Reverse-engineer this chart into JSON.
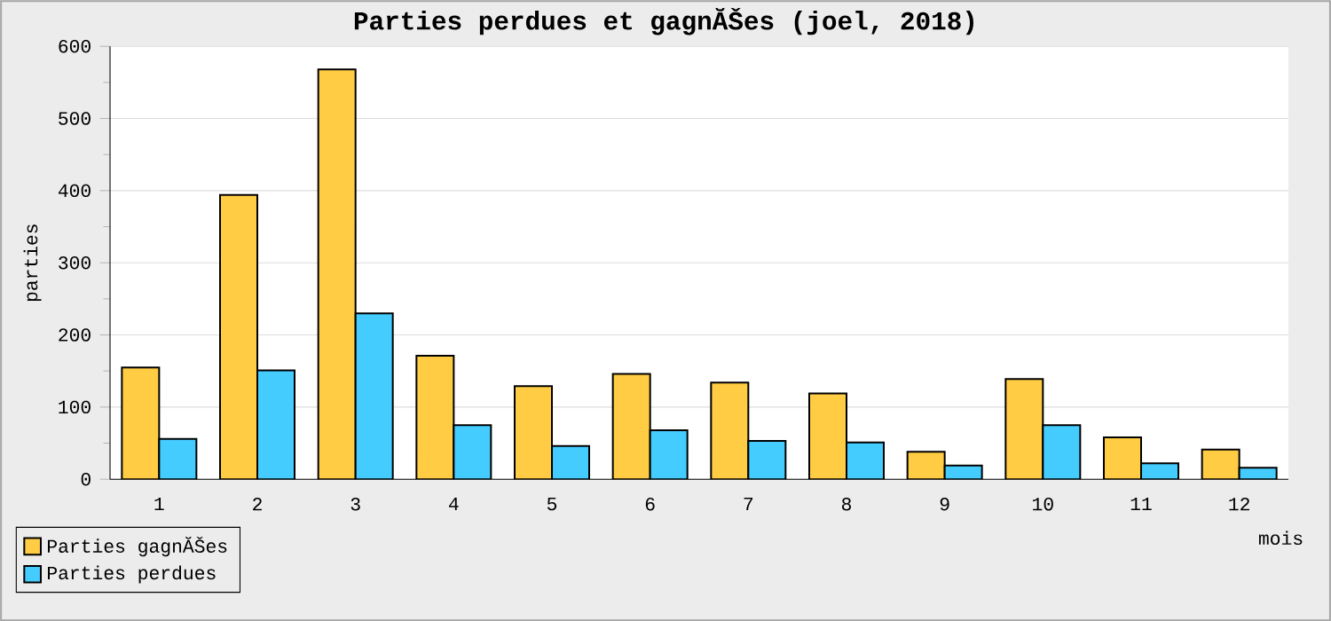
{
  "chart_data": {
    "type": "bar",
    "title": "Parties perdues et gagnĂŠes (joel, 2018)",
    "xlabel": "mois",
    "ylabel": "parties",
    "categories": [
      "1",
      "2",
      "3",
      "4",
      "5",
      "6",
      "7",
      "8",
      "9",
      "10",
      "11",
      "12"
    ],
    "series": [
      {
        "name": "Parties gagnĂŠes",
        "color": "#ffcc44",
        "values": [
          155,
          394,
          568,
          171,
          129,
          146,
          134,
          119,
          38,
          139,
          58,
          41
        ]
      },
      {
        "name": "Parties perdues",
        "color": "#44ccff",
        "values": [
          56,
          151,
          230,
          75,
          46,
          68,
          53,
          51,
          19,
          75,
          22,
          16
        ]
      }
    ],
    "ylim": [
      0,
      600
    ],
    "yticks": [
      0,
      100,
      200,
      300,
      400,
      500,
      600
    ],
    "grid": "y",
    "legend": "bottom left"
  }
}
